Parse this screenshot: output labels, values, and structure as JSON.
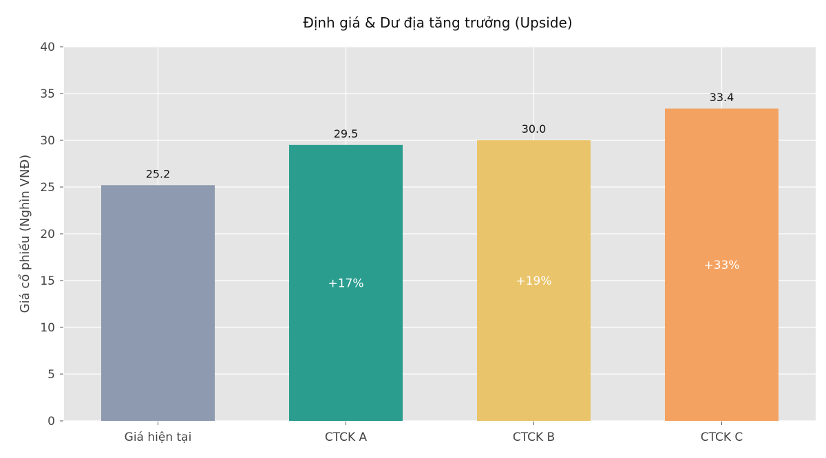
{
  "chart_data": {
    "type": "bar",
    "title": "Định giá & Dư địa tăng trưởng (Upside)",
    "xlabel": "",
    "ylabel": "Giá cổ phiếu (Nghìn VNĐ)",
    "ylim": [
      0,
      40
    ],
    "yticks": [
      0,
      5,
      10,
      15,
      20,
      25,
      30,
      35,
      40
    ],
    "grid": true,
    "categories": [
      "Giá hiện tại",
      "CTCK A",
      "CTCK B",
      "CTCK C"
    ],
    "values": [
      25.2,
      29.5,
      30.0,
      33.4
    ],
    "value_labels": [
      "25.2",
      "29.5",
      "30.0",
      "33.4"
    ],
    "upside_labels": [
      "",
      "+17%",
      "+19%",
      "+33%"
    ],
    "colors": [
      "#8E9AAF",
      "#2A9D8F",
      "#E9C46A",
      "#F4A261"
    ],
    "background": "#E5E5E5"
  }
}
